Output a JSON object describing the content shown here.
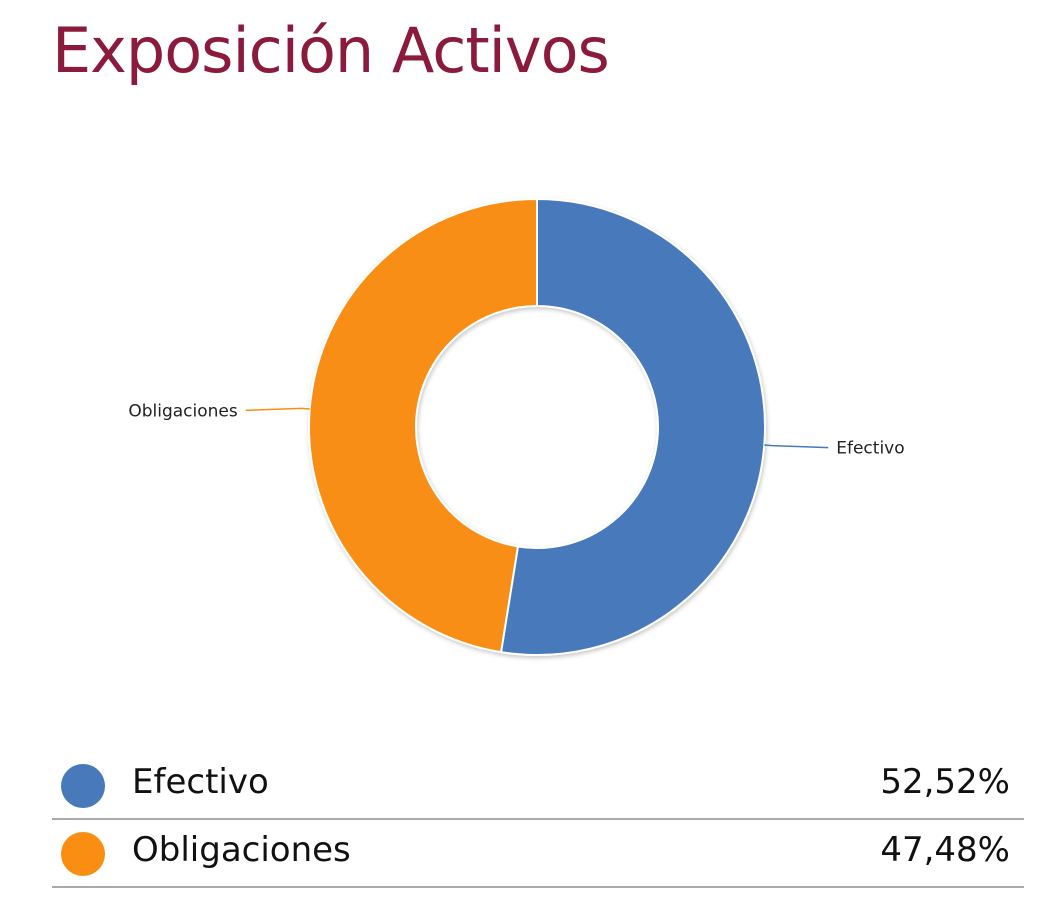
{
  "title": "Exposición Activos",
  "chart_data": {
    "type": "pie",
    "donut": true,
    "slices": [
      {
        "label": "Efectivo",
        "value": 52.52,
        "display": "52,52%",
        "color": "#4779bb"
      },
      {
        "label": "Obligaciones",
        "value": 47.48,
        "display": "47,48%",
        "color": "#f98e12"
      }
    ],
    "start_angle": "top",
    "direction": "clockwise",
    "legend": "bottom"
  }
}
